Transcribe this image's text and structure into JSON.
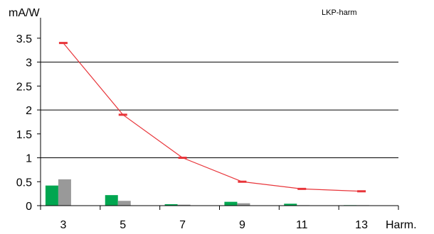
{
  "chart_data": {
    "type": "bar",
    "title": "LKP-harm",
    "ylabel": "mA/W",
    "xlabel": "Harm.",
    "categories": [
      "3",
      "5",
      "7",
      "9",
      "11",
      "13"
    ],
    "yticks": [
      "0",
      "0.5",
      "1",
      "1.5",
      "2",
      "2.5",
      "3",
      "3.5"
    ],
    "ylim": [
      0,
      3.75
    ],
    "grid": "horizontal at 1, 2, 3",
    "series": [
      {
        "type": "bar",
        "color": "#00a650",
        "values": [
          0.42,
          0.22,
          0.03,
          0.08,
          0.04,
          0.01
        ]
      },
      {
        "type": "bar",
        "color": "#999999",
        "values": [
          0.55,
          0.1,
          0.02,
          0.05,
          0.01,
          0.01
        ]
      },
      {
        "type": "line",
        "color": "#e8353a",
        "values": [
          3.4,
          1.9,
          1.0,
          0.5,
          0.35,
          0.3
        ]
      }
    ]
  }
}
